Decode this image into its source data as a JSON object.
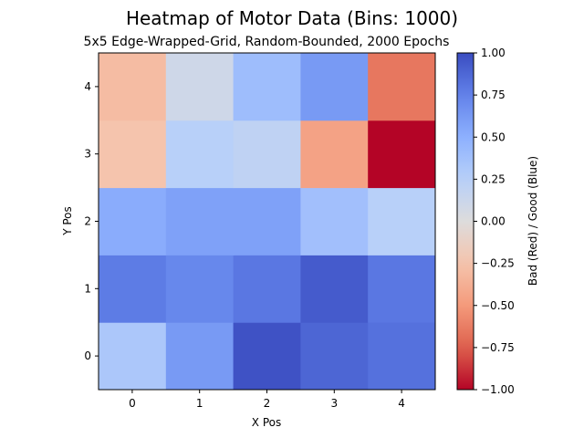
{
  "chart_data": {
    "type": "heatmap",
    "title": "Heatmap of Motor Data (Bins: 1000)",
    "subtitle": "5x5 Edge-Wrapped-Grid, Random-Bounded, 2000 Epochs",
    "xlabel": "X Pos",
    "ylabel": "Y Pos",
    "x": [
      0,
      1,
      2,
      3,
      4
    ],
    "y": [
      0,
      1,
      2,
      3,
      4
    ],
    "values": [
      [
        0.32,
        0.62,
        0.97,
        0.88,
        0.83
      ],
      [
        0.78,
        0.72,
        0.8,
        0.93,
        0.8
      ],
      [
        0.52,
        0.58,
        0.58,
        0.38,
        0.25
      ],
      [
        -0.25,
        0.25,
        0.2,
        -0.45,
        -1.0
      ],
      [
        -0.3,
        0.1,
        0.4,
        0.62,
        -0.65
      ]
    ],
    "clim": [
      -1.0,
      1.0
    ],
    "colormap": "coolwarm",
    "colorbar": {
      "label": "Bad (Red)     /     Good (Blue)",
      "ticks": [
        -1.0,
        -0.75,
        -0.5,
        -0.25,
        0.0,
        0.25,
        0.5,
        0.75,
        1.0
      ],
      "tick_labels": [
        "−1.00",
        "−0.75",
        "−0.50",
        "−0.25",
        "0.00",
        "0.25",
        "0.50",
        "0.75",
        "1.00"
      ]
    },
    "grid": false
  }
}
